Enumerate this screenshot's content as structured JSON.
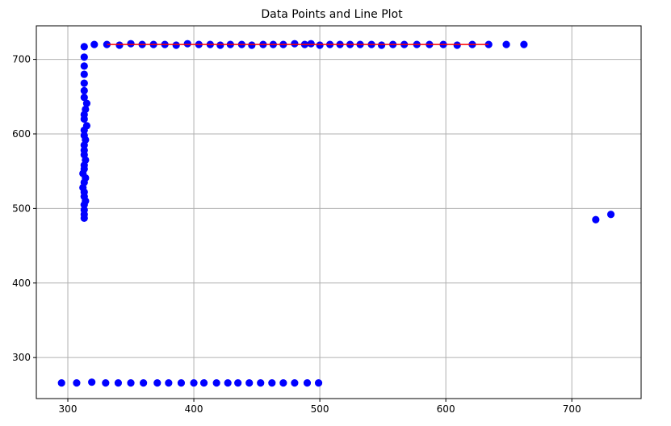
{
  "chart_data": {
    "type": "scatter",
    "title": "Data Points and Line Plot",
    "xlabel": "",
    "ylabel": "",
    "xlim": [
      275,
      755
    ],
    "ylim": [
      245,
      745
    ],
    "xticks": [
      300,
      400,
      500,
      600,
      700
    ],
    "yticks": [
      300,
      400,
      500,
      600,
      700
    ],
    "grid": true,
    "colors": {
      "points": "#0000ff",
      "line": "#ff0000",
      "grid": "#b0b0b0",
      "axes": "#000000"
    },
    "series": [
      {
        "type": "scatter",
        "points": [
          [
            295,
            266
          ],
          [
            307,
            266
          ],
          [
            319,
            267
          ],
          [
            330,
            266
          ],
          [
            340,
            266
          ],
          [
            350,
            266
          ],
          [
            360,
            266
          ],
          [
            371,
            266
          ],
          [
            380,
            266
          ],
          [
            390,
            266
          ],
          [
            400,
            266
          ],
          [
            408,
            266
          ],
          [
            418,
            266
          ],
          [
            427,
            266
          ],
          [
            435,
            266
          ],
          [
            444,
            266
          ],
          [
            453,
            266
          ],
          [
            462,
            266
          ],
          [
            471,
            266
          ],
          [
            480,
            266
          ],
          [
            490,
            266
          ],
          [
            499,
            266
          ],
          [
            313,
            717
          ],
          [
            313,
            703
          ],
          [
            313,
            691
          ],
          [
            313,
            680
          ],
          [
            313,
            668
          ],
          [
            313,
            658
          ],
          [
            313,
            649
          ],
          [
            315,
            641
          ],
          [
            314,
            633
          ],
          [
            313,
            626
          ],
          [
            313,
            620
          ],
          [
            315,
            611
          ],
          [
            313,
            605
          ],
          [
            313,
            598
          ],
          [
            314,
            592
          ],
          [
            313,
            585
          ],
          [
            313,
            578
          ],
          [
            313,
            572
          ],
          [
            314,
            565
          ],
          [
            313,
            558
          ],
          [
            313,
            553
          ],
          [
            312,
            547
          ],
          [
            314,
            541
          ],
          [
            313,
            535
          ],
          [
            312,
            528
          ],
          [
            313,
            522
          ],
          [
            313,
            516
          ],
          [
            314,
            510
          ],
          [
            313,
            505
          ],
          [
            313,
            498
          ],
          [
            313,
            492
          ],
          [
            313,
            487
          ],
          [
            321,
            720
          ],
          [
            331,
            720
          ],
          [
            341,
            719
          ],
          [
            350,
            721
          ],
          [
            359,
            720
          ],
          [
            368,
            720
          ],
          [
            377,
            720
          ],
          [
            386,
            719
          ],
          [
            395,
            721
          ],
          [
            404,
            720
          ],
          [
            413,
            720
          ],
          [
            421,
            719
          ],
          [
            429,
            720
          ],
          [
            438,
            720
          ],
          [
            446,
            719
          ],
          [
            455,
            720
          ],
          [
            463,
            720
          ],
          [
            471,
            720
          ],
          [
            480,
            721
          ],
          [
            488,
            720
          ],
          [
            493,
            721
          ],
          [
            500,
            719
          ],
          [
            508,
            720
          ],
          [
            516,
            720
          ],
          [
            524,
            720
          ],
          [
            532,
            720
          ],
          [
            541,
            720
          ],
          [
            549,
            719
          ],
          [
            558,
            720
          ],
          [
            567,
            720
          ],
          [
            577,
            720
          ],
          [
            587,
            720
          ],
          [
            598,
            720
          ],
          [
            609,
            719
          ],
          [
            621,
            720
          ],
          [
            634,
            720
          ],
          [
            648,
            720
          ],
          [
            662,
            720
          ],
          [
            719,
            485
          ],
          [
            731,
            492
          ]
        ]
      },
      {
        "type": "line",
        "points": [
          [
            331,
            720
          ],
          [
            634,
            720
          ]
        ]
      }
    ]
  }
}
